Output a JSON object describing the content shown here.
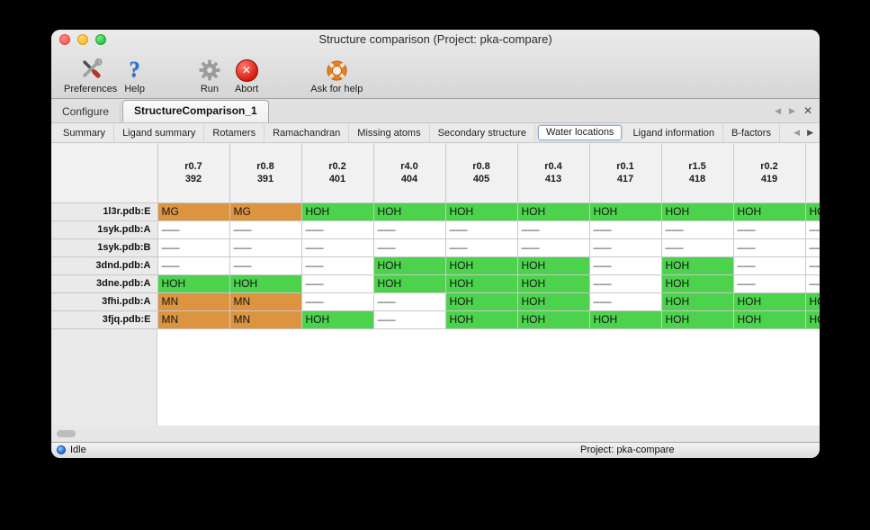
{
  "window": {
    "title": "Structure comparison (Project: pka-compare)"
  },
  "toolbar": {
    "items": [
      {
        "label": "Preferences",
        "icon": "crossed-tools"
      },
      {
        "label": "Help",
        "icon": "blue-question-mark"
      },
      {
        "label": "Run",
        "icon": "gear"
      },
      {
        "label": "Abort",
        "icon": "red-circle-x"
      },
      {
        "label": "Ask for help",
        "icon": "lifebuoy"
      }
    ]
  },
  "doc_tabs": {
    "items": [
      {
        "label": "Configure",
        "active": false
      },
      {
        "label": "StructureComparison_1",
        "active": true
      }
    ]
  },
  "subtabs": {
    "items": [
      "Summary",
      "Ligand summary",
      "Rotamers",
      "Ramachandran",
      "Missing atoms",
      "Secondary structure",
      "Water locations",
      "Ligand information",
      "B-factors"
    ],
    "active": "Water locations"
  },
  "table": {
    "columns": [
      {
        "line1": "r0.7",
        "line2": "392"
      },
      {
        "line1": "r0.8",
        "line2": "391"
      },
      {
        "line1": "r0.2",
        "line2": "401"
      },
      {
        "line1": "r4.0",
        "line2": "404"
      },
      {
        "line1": "r0.8",
        "line2": "405"
      },
      {
        "line1": "r0.4",
        "line2": "413"
      },
      {
        "line1": "r0.1",
        "line2": "417"
      },
      {
        "line1": "r1.5",
        "line2": "418"
      },
      {
        "line1": "r0.2",
        "line2": "419"
      },
      {
        "line1": "",
        "line2": ""
      }
    ],
    "rows": [
      {
        "label": "1l3r.pdb:E",
        "cells": [
          "MG",
          "MG",
          "HOH",
          "HOH",
          "HOH",
          "HOH",
          "HOH",
          "HOH",
          "HOH",
          "HOH"
        ]
      },
      {
        "label": "1syk.pdb:A",
        "cells": [
          "–––",
          "–––",
          "–––",
          "–––",
          "–––",
          "–––",
          "–––",
          "–––",
          "–––",
          "–––"
        ]
      },
      {
        "label": "1syk.pdb:B",
        "cells": [
          "–––",
          "–––",
          "–––",
          "–––",
          "–––",
          "–––",
          "–––",
          "–––",
          "–––",
          "–––"
        ]
      },
      {
        "label": "3dnd.pdb:A",
        "cells": [
          "–––",
          "–––",
          "–––",
          "HOH",
          "HOH",
          "HOH",
          "–––",
          "HOH",
          "–––",
          "–––"
        ]
      },
      {
        "label": "3dne.pdb:A",
        "cells": [
          "HOH",
          "HOH",
          "–––",
          "HOH",
          "HOH",
          "HOH",
          "–––",
          "HOH",
          "–––",
          "–––"
        ]
      },
      {
        "label": "3fhi.pdb:A",
        "cells": [
          "MN",
          "MN",
          "–––",
          "–––",
          "HOH",
          "HOH",
          "–––",
          "HOH",
          "HOH",
          "HOH"
        ]
      },
      {
        "label": "3fjq.pdb:E",
        "cells": [
          "MN",
          "MN",
          "HOH",
          "–––",
          "HOH",
          "HOH",
          "HOH",
          "HOH",
          "HOH",
          "HOH"
        ]
      }
    ]
  },
  "statusbar": {
    "status": "Idle",
    "project": "Project: pka-compare"
  },
  "colors": {
    "water_green": "#4cd24c",
    "metal_orange": "#dd9440",
    "status_dot_blue": "#1263d6"
  }
}
